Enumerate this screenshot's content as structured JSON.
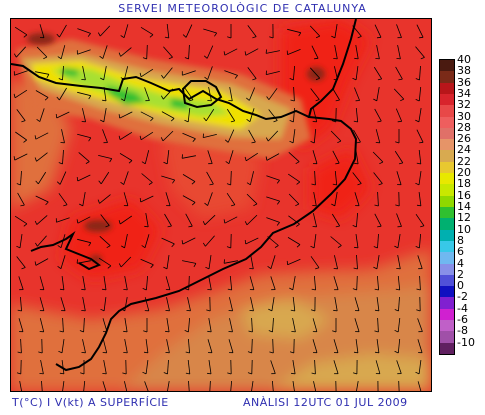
{
  "header": {
    "title": "SERVEI METEOROLÒGIC DE CATALUNYA"
  },
  "footer": {
    "variable": "T(°C) I V(kt) A SUPERFÍCIE",
    "analysis": "ANÀLISI 12UTC 01 JUL 2009"
  },
  "legend": {
    "labels": [
      "40",
      "38",
      "36",
      "34",
      "32",
      "30",
      "28",
      "26",
      "24",
      "22",
      "20",
      "18",
      "16",
      "14",
      "12",
      "10",
      "8",
      "6",
      "4",
      "2",
      "0",
      "-2",
      "-4",
      "-6",
      "-8",
      "-10"
    ],
    "colors": [
      "#4a1a10",
      "#7a2a18",
      "#b8161a",
      "#d8242c",
      "#e84848",
      "#ee5e5e",
      "#e07068",
      "#e69468",
      "#d8aa50",
      "#e8c830",
      "#e8e800",
      "#c8e800",
      "#90d800",
      "#30c030",
      "#00b070",
      "#00b0b0",
      "#38c8e8",
      "#70b8f0",
      "#8890e8",
      "#5050d8",
      "#1010c0",
      "#8020d0",
      "#d020d0",
      "#c060c8",
      "#a050a8",
      "#602060"
    ]
  },
  "map": {
    "colors": {
      "base": "#e8342c",
      "warm": "#e84a30",
      "orange": "#e0703c",
      "tan": "#d8864a",
      "gold": "#d8a850",
      "hot": "#f02018",
      "dark": "#8a2818",
      "yellow": "#f0e000",
      "lightgreen": "#a8e030",
      "green": "#30c030"
    },
    "coastline_color": "#000000",
    "wind_barb_color": "#000000"
  }
}
